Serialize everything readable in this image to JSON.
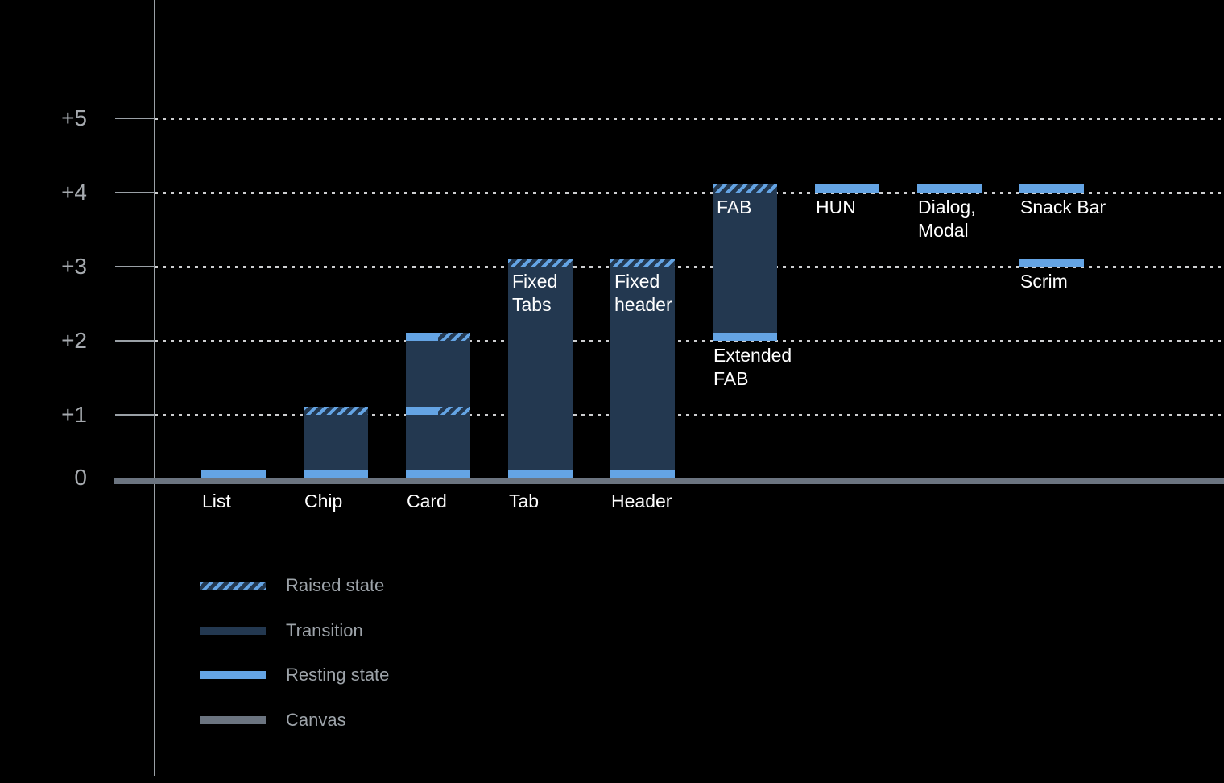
{
  "colors": {
    "background": "#000000",
    "resting": "#64a4e4",
    "transition": "#233850",
    "canvas": "#6b7480",
    "axis": "#9aa0a6",
    "grid_dots": "#cdced0",
    "axis_label": "#a6aaaf",
    "legend_text": "#9da3a9",
    "bar_label": "#ffffff"
  },
  "chart_data": {
    "type": "bar",
    "title": "",
    "subtitle": "",
    "xlabel": "",
    "ylabel": "",
    "ylim": [
      0,
      5.5
    ],
    "grid": "dotted-horizontal",
    "legend_position": "bottom-left",
    "y_ticks": [
      {
        "label": "+5",
        "level": 5
      },
      {
        "label": "+4",
        "level": 4
      },
      {
        "label": "+3",
        "level": 3
      },
      {
        "label": "+2",
        "level": 2
      },
      {
        "label": "+1",
        "level": 1
      },
      {
        "label": "0",
        "level": 0
      }
    ],
    "legend": [
      {
        "style": "raised",
        "label": "Raised state"
      },
      {
        "style": "transition",
        "label": "Transition"
      },
      {
        "style": "resting",
        "label": "Resting state"
      },
      {
        "style": "canvas",
        "label": "Canvas"
      }
    ],
    "components": [
      {
        "id": "list",
        "col": 0,
        "axis_label": "List",
        "resting_level": 0,
        "strips": [
          {
            "level": 0,
            "style": "resting"
          }
        ]
      },
      {
        "id": "chip",
        "col": 1,
        "axis_label": "Chip",
        "resting_level": 0,
        "raised_level": 1,
        "bar": {
          "from": 0,
          "to": 1
        },
        "strips": [
          {
            "level": 0,
            "style": "resting"
          },
          {
            "level": 1,
            "style": "raised"
          }
        ]
      },
      {
        "id": "card",
        "col": 2,
        "axis_label": "Card",
        "resting_level": 0,
        "raised_level": 2,
        "bar": {
          "from": 0,
          "to": 2
        },
        "strips": [
          {
            "level": 0,
            "style": "resting"
          },
          {
            "level": 1,
            "style": "split"
          },
          {
            "level": 2,
            "style": "split"
          }
        ]
      },
      {
        "id": "tab",
        "col": 3,
        "axis_label": "Tab",
        "inner_label": "Fixed\nTabs",
        "resting_level": 0,
        "raised_level": 3,
        "bar": {
          "from": 0,
          "to": 3
        },
        "strips": [
          {
            "level": 0,
            "style": "resting"
          },
          {
            "level": 3,
            "style": "raised"
          }
        ]
      },
      {
        "id": "header",
        "col": 4,
        "axis_label": "Header",
        "inner_label": "Fixed\nheader",
        "resting_level": 0,
        "raised_level": 3,
        "bar": {
          "from": 0,
          "to": 3
        },
        "strips": [
          {
            "level": 0,
            "style": "resting"
          },
          {
            "level": 3,
            "style": "raised"
          }
        ]
      },
      {
        "id": "fab",
        "col": 5,
        "inner_label": "FAB",
        "below_label": "Extended\nFAB",
        "resting_level": 2,
        "raised_level": 4,
        "bar": {
          "from": 2,
          "to": 4
        },
        "strips": [
          {
            "level": 2,
            "style": "resting"
          },
          {
            "level": 4,
            "style": "raised"
          }
        ]
      },
      {
        "id": "hun",
        "col": 6,
        "below_label": "HUN",
        "resting_level": 4,
        "strips": [
          {
            "level": 4,
            "style": "resting"
          }
        ]
      },
      {
        "id": "dialog-modal",
        "col": 7,
        "below_label": "Dialog,\nModal",
        "resting_level": 4,
        "strips": [
          {
            "level": 4,
            "style": "resting"
          }
        ]
      },
      {
        "id": "snack-bar",
        "col": 8,
        "below_label": "Snack Bar",
        "resting_level": 4,
        "strips": [
          {
            "level": 4,
            "style": "resting"
          }
        ]
      },
      {
        "id": "scrim",
        "col": 8,
        "below_label": "Scrim",
        "resting_level": 3,
        "strips": [
          {
            "level": 3,
            "style": "resting"
          }
        ]
      }
    ]
  }
}
